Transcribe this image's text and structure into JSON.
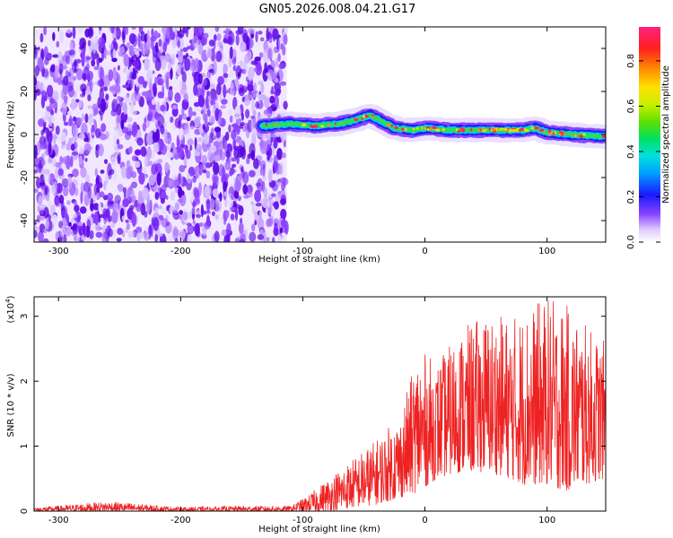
{
  "title": "GN05.2026.008.04.21.G17",
  "chart_data": [
    {
      "type": "heatmap",
      "description": "Spectrogram of frequency versus height of straight line; noisy purple region for heights below about -115 km, concentrated narrow band near 0 Hz for heights above about -130 km",
      "xlabel": "Height of straight line (km)",
      "ylabel": "Frequency (Hz)",
      "xlim": [
        -320,
        148
      ],
      "ylim": [
        -50,
        50
      ],
      "xticks": [
        -300,
        -200,
        -100,
        0,
        100
      ],
      "yticks": [
        -40,
        -20,
        0,
        20,
        40
      ],
      "noise_region_x": [
        -320,
        -113
      ],
      "band_region_x": [
        -133,
        148
      ],
      "band_center_hz": [
        {
          "x": -130,
          "y": 4
        },
        {
          "x": -110,
          "y": 5
        },
        {
          "x": -90,
          "y": 4
        },
        {
          "x": -70,
          "y": 5
        },
        {
          "x": -55,
          "y": 7
        },
        {
          "x": -45,
          "y": 9
        },
        {
          "x": -35,
          "y": 6
        },
        {
          "x": -25,
          "y": 3
        },
        {
          "x": -10,
          "y": 2
        },
        {
          "x": 0,
          "y": 3
        },
        {
          "x": 20,
          "y": 2
        },
        {
          "x": 40,
          "y": 2
        },
        {
          "x": 60,
          "y": 2
        },
        {
          "x": 80,
          "y": 2
        },
        {
          "x": 90,
          "y": 3
        },
        {
          "x": 100,
          "y": 1
        },
        {
          "x": 120,
          "y": 0
        },
        {
          "x": 148,
          "y": -1
        }
      ],
      "colorbar": {
        "label": "Normalized spectral amplitude",
        "range": [
          0,
          0.95
        ],
        "ticks": [
          "0.0",
          "0.2",
          "0.4",
          "0.6",
          "0.8"
        ]
      }
    },
    {
      "type": "line",
      "description": "SNR versus height of straight line; near zero below -110 km, rising from -110 km to about 30 km, then fluctuating between about 0.5 and 3.3 up to 148 km",
      "xlabel": "Height of straight line (km)",
      "ylabel": "SNR (10 * v/v)",
      "exponent_label": "(x10",
      "exponent_power": "4",
      "exponent_close": ")",
      "xlim": [
        -320,
        148
      ],
      "ylim": [
        0,
        3.3
      ],
      "xticks": [
        -300,
        -200,
        -100,
        0,
        100
      ],
      "yticks": [
        0,
        1,
        2,
        3
      ],
      "color": "#ee2222",
      "envelope": [
        {
          "x": -320,
          "low": 0.0,
          "high": 0.05
        },
        {
          "x": -260,
          "low": 0.0,
          "high": 0.15
        },
        {
          "x": -200,
          "low": 0.0,
          "high": 0.06
        },
        {
          "x": -150,
          "low": 0.0,
          "high": 0.08
        },
        {
          "x": -110,
          "low": 0.0,
          "high": 0.08
        },
        {
          "x": -95,
          "low": 0.0,
          "high": 0.25
        },
        {
          "x": -80,
          "low": 0.0,
          "high": 0.5
        },
        {
          "x": -60,
          "low": 0.05,
          "high": 0.8
        },
        {
          "x": -40,
          "low": 0.1,
          "high": 1.1
        },
        {
          "x": -20,
          "low": 0.2,
          "high": 1.5
        },
        {
          "x": -5,
          "low": 0.3,
          "high": 2.5
        },
        {
          "x": 10,
          "low": 0.5,
          "high": 2.3
        },
        {
          "x": 30,
          "low": 0.6,
          "high": 2.8
        },
        {
          "x": 50,
          "low": 0.6,
          "high": 3.05
        },
        {
          "x": 70,
          "low": 0.5,
          "high": 3.0
        },
        {
          "x": 80,
          "low": 0.4,
          "high": 3.1
        },
        {
          "x": 100,
          "low": 0.4,
          "high": 3.3
        },
        {
          "x": 115,
          "low": 0.3,
          "high": 3.2
        },
        {
          "x": 130,
          "low": 0.4,
          "high": 2.9
        },
        {
          "x": 148,
          "low": 0.5,
          "high": 2.6
        }
      ]
    }
  ]
}
